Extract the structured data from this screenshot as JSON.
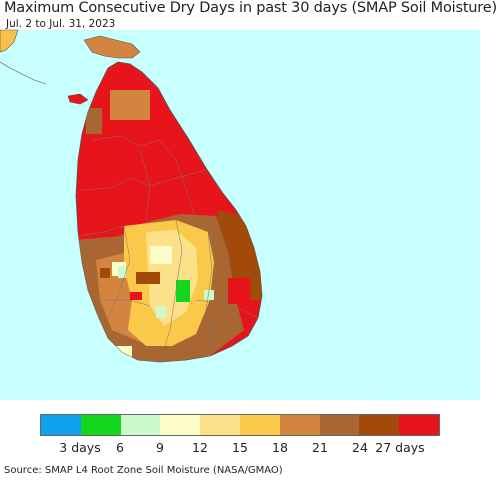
{
  "title": "Maximum Consecutive Dry Days in past 30 days (SMAP Soil Moisture)",
  "subtitle": "Jul. 2 to Jul. 31, 2023",
  "source": "Source: SMAP L4 Root Zone Soil Moisture (NASA/GMAO)",
  "colors": {
    "ocean": "#c8ffff",
    "india": "#f6c04a",
    "red": "#e8141c",
    "dark_brown": "#a24a0a",
    "brown": "#a86632",
    "orange_brown": "#d3843f",
    "gold": "#fbc94a",
    "light_gold": "#fde08a",
    "cream": "#fdfdc8",
    "light_green": "#cdfacd",
    "green": "#13d71d",
    "border": "#555555"
  },
  "legend": {
    "colors": [
      "#0fa1ee",
      "#13d71d",
      "#cdfacd",
      "#fdfdc8",
      "#fde08a",
      "#fbc94a",
      "#d3843f",
      "#a86632",
      "#a24a0a",
      "#e8141c"
    ],
    "labels": [
      "3 days",
      "6",
      "9",
      "12",
      "15",
      "18",
      "21",
      "24",
      "27 days"
    ]
  }
}
